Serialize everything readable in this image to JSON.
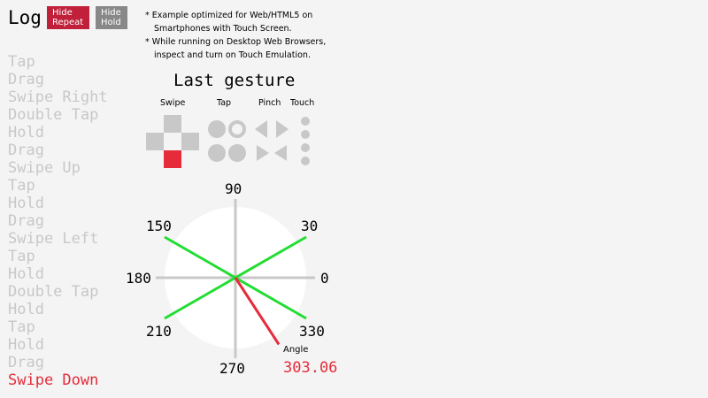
{
  "header": {
    "title": "Log",
    "hide_repeat": "Hide\nRepeat",
    "hide_hold": "Hide\nHold"
  },
  "notes": [
    "* Example optimized for Web/HTML5 on Smartphones with Touch Screen.",
    "* While running on Desktop Web Browsers, inspect and turn on Touch Emulation."
  ],
  "log": [
    "Tap",
    "Drag",
    "Swipe Right",
    "Double Tap",
    "Hold",
    "Drag",
    "Swipe Up",
    "Tap",
    "Hold",
    "Drag",
    "Swipe Left",
    "Tap",
    "Hold",
    "Double Tap",
    "Hold",
    "Tap",
    "Hold",
    "Drag",
    "Swipe Down"
  ],
  "gesture": {
    "title": "Last gesture",
    "labels": {
      "swipe": "Swipe",
      "tap": "Tap",
      "pinch": "Pinch",
      "touch": "Touch"
    },
    "active_swipe": "down"
  },
  "dial": {
    "ticks": [
      "90",
      "30",
      "0",
      "330",
      "270",
      "210",
      "180",
      "150"
    ],
    "angle_label": "Angle",
    "angle_value": "303.06",
    "angle": 303.06,
    "colors": {
      "accent": "#e62b3a",
      "guides": "#22dd33"
    }
  }
}
